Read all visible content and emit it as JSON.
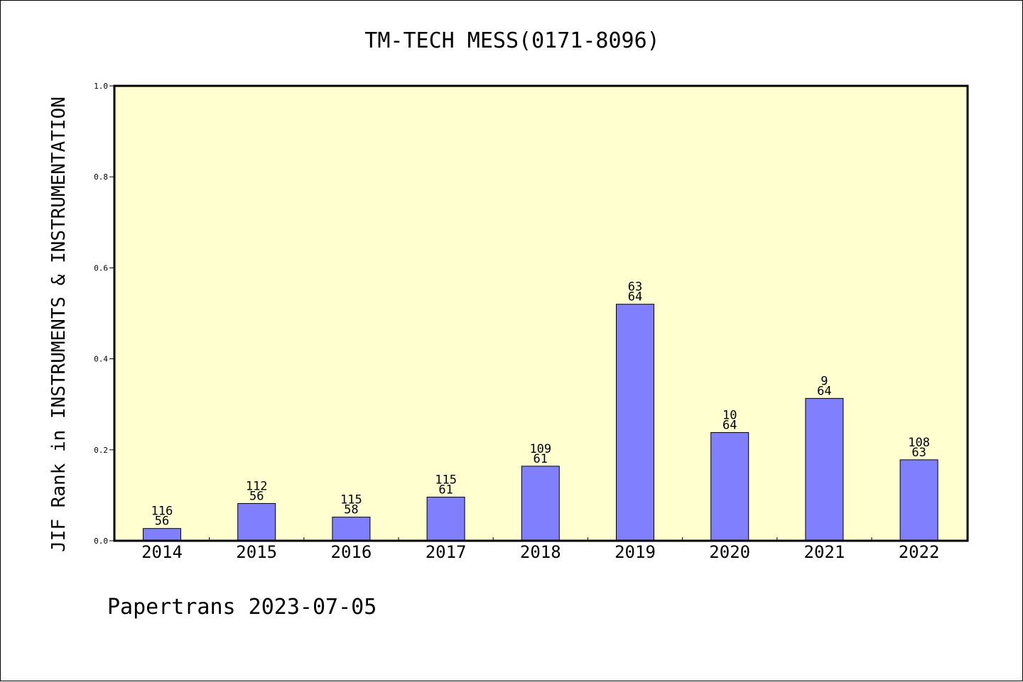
{
  "chart_data": {
    "type": "bar",
    "title": "TM-TECH MESS(0171-8096)",
    "xlabel": "",
    "ylabel": "JIF Rank in INSTRUMENTS & INSTRUMENTATION",
    "categories": [
      "2014",
      "2015",
      "2016",
      "2017",
      "2018",
      "2019",
      "2020",
      "2021",
      "2022"
    ],
    "values": [
      0.027,
      0.082,
      0.052,
      0.096,
      0.164,
      0.52,
      0.238,
      0.313,
      0.178
    ],
    "ranks": [
      "116",
      "112",
      "115",
      "115",
      "109",
      "63",
      "10",
      "9",
      "108"
    ],
    "totals": [
      "56",
      "56",
      "58",
      "61",
      "61",
      "64",
      "64",
      "64",
      "63"
    ],
    "ylim": [
      0,
      1.0
    ],
    "yticks": [
      "0.0",
      "0.2",
      "0.4",
      "0.6",
      "0.8",
      "1.0"
    ],
    "grid": false,
    "colors": {
      "bar_fill": "#8080ff",
      "plot_background": "#ffffd0",
      "axis": "#000000"
    }
  },
  "footer": {
    "text": "Papertrans 2023-07-05"
  }
}
